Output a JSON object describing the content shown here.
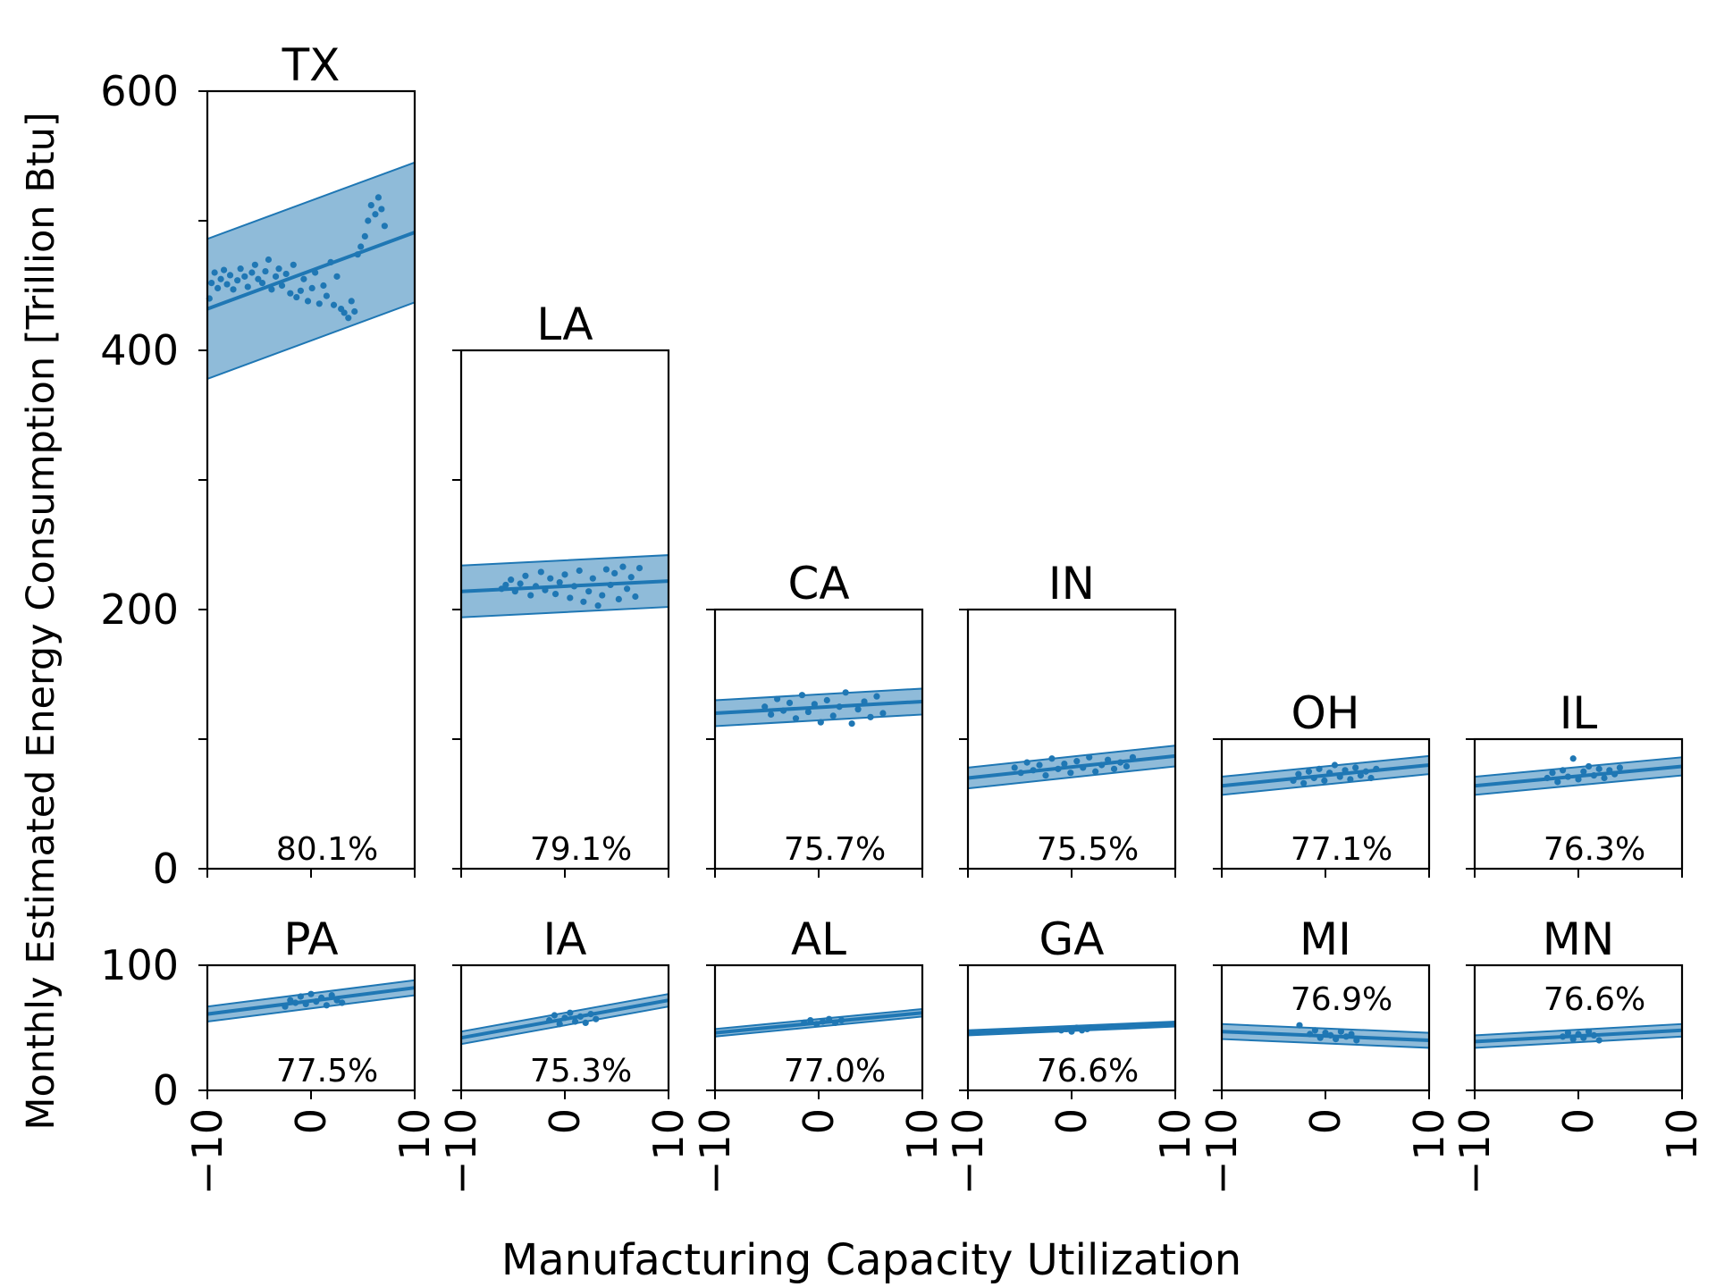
{
  "chart_data": {
    "type": "scatter",
    "xlabel": "Manufacturing Capacity Utilization",
    "ylabel": "Monthly Estimated Energy Consumption [Trillion Btu]",
    "x_ticks": [
      "−10",
      "0",
      "10"
    ],
    "x_range": [
      -10,
      10
    ],
    "top_row_y_ticks": [
      "0",
      "200",
      "400",
      "600"
    ],
    "bottom_row_y_ticks": [
      "0",
      "100"
    ],
    "series_color": "#1f77b4",
    "band_color": "#1f77b4",
    "panels": [
      {
        "state": "TX",
        "row": 0,
        "ymax": 600,
        "mean_label": "80.1%",
        "label_pos": "bottom",
        "line": [
          [
            -10,
            432
          ],
          [
            10,
            491
          ]
        ],
        "band_half": 54,
        "points": [
          [
            -9.8,
            440
          ],
          [
            -9.6,
            452
          ],
          [
            -9.3,
            460
          ],
          [
            -9,
            448
          ],
          [
            -8.7,
            455
          ],
          [
            -8.4,
            462
          ],
          [
            -8.1,
            451
          ],
          [
            -7.8,
            458
          ],
          [
            -7.5,
            447
          ],
          [
            -7.1,
            454
          ],
          [
            -6.8,
            463
          ],
          [
            -6.4,
            457
          ],
          [
            -6.1,
            449
          ],
          [
            -5.7,
            460
          ],
          [
            -5.4,
            466
          ],
          [
            -5.1,
            455
          ],
          [
            -4.7,
            452
          ],
          [
            -4.4,
            461
          ],
          [
            -4.1,
            470
          ],
          [
            -3.8,
            447
          ],
          [
            -3.4,
            457
          ],
          [
            -3.1,
            463
          ],
          [
            -2.8,
            450
          ],
          [
            -2.4,
            459
          ],
          [
            -2,
            444
          ],
          [
            -1.7,
            466
          ],
          [
            -1.4,
            441
          ],
          [
            -1,
            446
          ],
          [
            -0.7,
            455
          ],
          [
            -0.3,
            438
          ],
          [
            0.1,
            448
          ],
          [
            0.4,
            460
          ],
          [
            0.8,
            436
          ],
          [
            1.2,
            450
          ],
          [
            1.5,
            442
          ],
          [
            1.9,
            468
          ],
          [
            2.2,
            435
          ],
          [
            2.5,
            457
          ],
          [
            2.9,
            432
          ],
          [
            3.2,
            429
          ],
          [
            3.6,
            425
          ],
          [
            3.9,
            438
          ],
          [
            4.2,
            430
          ],
          [
            4.5,
            474
          ],
          [
            4.8,
            480
          ],
          [
            5.2,
            488
          ],
          [
            5.5,
            500
          ],
          [
            5.8,
            512
          ],
          [
            6.2,
            505
          ],
          [
            6.5,
            518
          ],
          [
            6.8,
            509
          ],
          [
            7.1,
            496
          ]
        ]
      },
      {
        "state": "LA",
        "row": 0,
        "ymax": 400,
        "mean_label": "79.1%",
        "label_pos": "bottom",
        "line": [
          [
            -10,
            214
          ],
          [
            10,
            222
          ]
        ],
        "band_half": 20,
        "points": [
          [
            -6.1,
            216
          ],
          [
            -5.7,
            219
          ],
          [
            -5.2,
            223
          ],
          [
            -4.8,
            214
          ],
          [
            -4.3,
            220
          ],
          [
            -3.8,
            226
          ],
          [
            -3.3,
            211
          ],
          [
            -2.8,
            218
          ],
          [
            -2.3,
            229
          ],
          [
            -1.9,
            215
          ],
          [
            -1.4,
            224
          ],
          [
            -0.9,
            212
          ],
          [
            -0.5,
            221
          ],
          [
            0,
            227
          ],
          [
            0.5,
            209
          ],
          [
            0.9,
            218
          ],
          [
            1.4,
            230
          ],
          [
            1.8,
            206
          ],
          [
            2.3,
            214
          ],
          [
            2.7,
            224
          ],
          [
            3.2,
            203
          ],
          [
            3.6,
            211
          ],
          [
            4,
            231
          ],
          [
            4.4,
            219
          ],
          [
            4.8,
            228
          ],
          [
            5.2,
            208
          ],
          [
            5.6,
            233
          ],
          [
            6,
            216
          ],
          [
            6.4,
            225
          ],
          [
            6.8,
            210
          ],
          [
            7.2,
            232
          ]
        ]
      },
      {
        "state": "CA",
        "row": 0,
        "ymax": 200,
        "mean_label": "75.7%",
        "label_pos": "bottom",
        "line": [
          [
            -10,
            120
          ],
          [
            10,
            129
          ]
        ],
        "band_half": 10,
        "points": [
          [
            -5.2,
            125
          ],
          [
            -4.6,
            119
          ],
          [
            -4,
            131
          ],
          [
            -3.4,
            122
          ],
          [
            -2.8,
            128
          ],
          [
            -2.2,
            116
          ],
          [
            -1.6,
            134
          ],
          [
            -1,
            121
          ],
          [
            -0.4,
            127
          ],
          [
            0.2,
            113
          ],
          [
            0.8,
            130
          ],
          [
            1.4,
            118
          ],
          [
            2,
            125
          ],
          [
            2.6,
            136
          ],
          [
            3.2,
            112
          ],
          [
            3.8,
            123
          ],
          [
            4.4,
            129
          ],
          [
            5,
            117
          ],
          [
            5.6,
            133
          ],
          [
            6.2,
            120
          ]
        ]
      },
      {
        "state": "IN",
        "row": 0,
        "ymax": 200,
        "mean_label": "75.5%",
        "label_pos": "bottom",
        "line": [
          [
            -10,
            70
          ],
          [
            10,
            87
          ]
        ],
        "band_half": 8,
        "points": [
          [
            -5.5,
            78
          ],
          [
            -4.9,
            74
          ],
          [
            -4.3,
            82
          ],
          [
            -3.7,
            76
          ],
          [
            -3.1,
            80
          ],
          [
            -2.5,
            72
          ],
          [
            -1.9,
            85
          ],
          [
            -1.3,
            77
          ],
          [
            -0.7,
            81
          ],
          [
            -0.1,
            74
          ],
          [
            0.5,
            83
          ],
          [
            1.1,
            78
          ],
          [
            1.7,
            86
          ],
          [
            2.3,
            75
          ],
          [
            2.9,
            80
          ],
          [
            3.5,
            84
          ],
          [
            4.1,
            77
          ],
          [
            4.7,
            82
          ],
          [
            5.3,
            79
          ],
          [
            5.9,
            86
          ]
        ]
      },
      {
        "state": "OH",
        "row": 0,
        "ymax": 100,
        "mean_label": "77.1%",
        "label_pos": "bottom",
        "line": [
          [
            -10,
            64
          ],
          [
            10,
            80
          ]
        ],
        "band_half": 7,
        "points": [
          [
            -3.1,
            68
          ],
          [
            -2.6,
            73
          ],
          [
            -2.1,
            66
          ],
          [
            -1.6,
            75
          ],
          [
            -1.1,
            70
          ],
          [
            -0.6,
            77
          ],
          [
            -0.1,
            68
          ],
          [
            0.4,
            74
          ],
          [
            0.9,
            80
          ],
          [
            1.4,
            71
          ],
          [
            1.9,
            76
          ],
          [
            2.4,
            69
          ],
          [
            2.9,
            78
          ],
          [
            3.4,
            72
          ],
          [
            3.9,
            75
          ],
          [
            4.4,
            70
          ],
          [
            4.9,
            77
          ]
        ]
      },
      {
        "state": "IL",
        "row": 0,
        "ymax": 100,
        "mean_label": "76.3%",
        "label_pos": "bottom",
        "line": [
          [
            -10,
            64
          ],
          [
            10,
            79
          ]
        ],
        "band_half": 7,
        "points": [
          [
            -3,
            70
          ],
          [
            -2.5,
            74
          ],
          [
            -2,
            67
          ],
          [
            -1.5,
            76
          ],
          [
            -1,
            71
          ],
          [
            -0.5,
            85
          ],
          [
            0,
            69
          ],
          [
            0.5,
            75
          ],
          [
            1,
            79
          ],
          [
            1.5,
            72
          ],
          [
            2,
            77
          ],
          [
            2.5,
            70
          ],
          [
            3,
            76
          ],
          [
            3.5,
            73
          ],
          [
            4,
            78
          ]
        ]
      },
      {
        "state": "PA",
        "row": 1,
        "ymax": 100,
        "mean_label": "77.5%",
        "label_pos": "bottom",
        "line": [
          [
            -10,
            61
          ],
          [
            10,
            82
          ]
        ],
        "band_half": 6,
        "points": [
          [
            -2.5,
            67
          ],
          [
            -2,
            72
          ],
          [
            -1.5,
            70
          ],
          [
            -1,
            75
          ],
          [
            -0.5,
            69
          ],
          [
            0,
            77
          ],
          [
            0.5,
            71
          ],
          [
            1,
            74
          ],
          [
            1.5,
            68
          ],
          [
            2,
            76
          ],
          [
            2.5,
            72
          ],
          [
            3,
            70
          ]
        ]
      },
      {
        "state": "IA",
        "row": 1,
        "ymax": 100,
        "mean_label": "75.3%",
        "label_pos": "bottom",
        "line": [
          [
            -10,
            42
          ],
          [
            10,
            72
          ]
        ],
        "band_half": 5,
        "points": [
          [
            -1.5,
            56
          ],
          [
            -1,
            60
          ],
          [
            -0.5,
            53
          ],
          [
            0,
            58
          ],
          [
            0.5,
            62
          ],
          [
            1,
            55
          ],
          [
            1.5,
            59
          ],
          [
            2,
            54
          ],
          [
            2.5,
            61
          ],
          [
            3,
            57
          ]
        ]
      },
      {
        "state": "AL",
        "row": 1,
        "ymax": 100,
        "mean_label": "77.0%",
        "label_pos": "bottom",
        "line": [
          [
            -10,
            46
          ],
          [
            10,
            62
          ]
        ],
        "band_half": 3,
        "points": [
          [
            -1.4,
            54
          ],
          [
            -0.8,
            56
          ],
          [
            -0.2,
            53
          ],
          [
            0.4,
            55
          ],
          [
            1,
            57
          ],
          [
            1.6,
            54
          ],
          [
            2.2,
            56
          ]
        ]
      },
      {
        "state": "GA",
        "row": 1,
        "ymax": 100,
        "mean_label": "76.6%",
        "label_pos": "bottom",
        "line": [
          [
            -10,
            46
          ],
          [
            10,
            53
          ]
        ],
        "band_half": 2,
        "points": [
          [
            -1,
            48
          ],
          [
            -0.5,
            49
          ],
          [
            0,
            47
          ],
          [
            0.5,
            50
          ],
          [
            1,
            48
          ],
          [
            1.5,
            49
          ]
        ]
      },
      {
        "state": "MI",
        "row": 1,
        "ymax": 100,
        "mean_label": "76.9%",
        "label_pos": "top",
        "line": [
          [
            -10,
            47
          ],
          [
            10,
            40
          ]
        ],
        "band_half": 6,
        "points": [
          [
            -2.5,
            52
          ],
          [
            -1.5,
            45
          ],
          [
            -1,
            48
          ],
          [
            -0.5,
            42
          ],
          [
            0,
            46
          ],
          [
            0.5,
            44
          ],
          [
            1,
            41
          ],
          [
            1.5,
            47
          ],
          [
            2,
            43
          ],
          [
            2.5,
            45
          ],
          [
            3,
            40
          ]
        ]
      },
      {
        "state": "MN",
        "row": 1,
        "ymax": 100,
        "mean_label": "76.6%",
        "label_pos": "top",
        "line": [
          [
            -10,
            39
          ],
          [
            10,
            48
          ]
        ],
        "band_half": 5,
        "points": [
          [
            -1.5,
            43
          ],
          [
            -1,
            46
          ],
          [
            -0.5,
            41
          ],
          [
            0,
            45
          ],
          [
            0.5,
            42
          ],
          [
            1,
            47
          ],
          [
            1.5,
            44
          ],
          [
            2,
            40
          ]
        ]
      }
    ]
  }
}
